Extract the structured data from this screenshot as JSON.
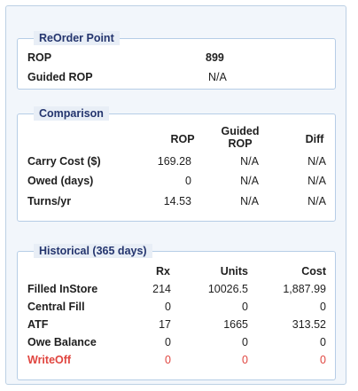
{
  "reorder": {
    "title": "ReOrder Point",
    "rop_label": "ROP",
    "rop_value": "899",
    "guided_label": "Guided ROP",
    "guided_value": "N/A"
  },
  "comparison": {
    "title": "Comparison",
    "headers": {
      "rop": "ROP",
      "guided_line1": "Guided",
      "guided_line2": "ROP",
      "diff": "Diff"
    },
    "rows": [
      {
        "label": "Carry Cost ($)",
        "rop": "169.28",
        "guided": "N/A",
        "diff": "N/A"
      },
      {
        "label": "Owed (days)",
        "rop": "0",
        "guided": "N/A",
        "diff": "N/A"
      },
      {
        "label": "Turns/yr",
        "rop": "14.53",
        "guided": "N/A",
        "diff": "N/A"
      }
    ]
  },
  "historical": {
    "title": "Historical (365 days)",
    "headers": {
      "rx": "Rx",
      "units": "Units",
      "cost": "Cost"
    },
    "rows": [
      {
        "label": "Filled InStore",
        "rx": "214",
        "units": "10026.5",
        "cost": "1,887.99"
      },
      {
        "label": "Central Fill",
        "rx": "0",
        "units": "0",
        "cost": "0"
      },
      {
        "label": "ATF",
        "rx": "17",
        "units": "1665",
        "cost": "313.52"
      },
      {
        "label": "Owe Balance",
        "rx": "0",
        "units": "0",
        "cost": "0"
      },
      {
        "label": "WriteOff",
        "rx": "0",
        "units": "0",
        "cost": "0"
      }
    ]
  },
  "colors": {
    "accent": "#24356e",
    "alert": "#e0453f",
    "border": "#b6cde6"
  }
}
